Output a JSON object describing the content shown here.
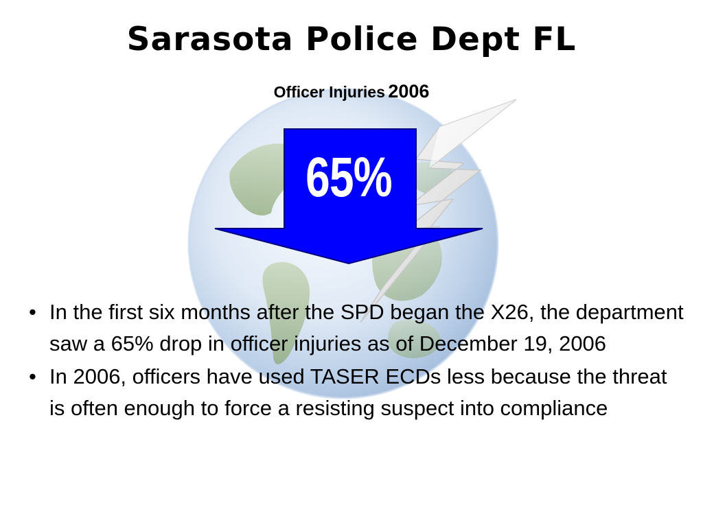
{
  "slide": {
    "title": "Sarasota Police Dept FL",
    "subtitle_label": "Officer Injuries",
    "subtitle_year": "2006",
    "arrow_value": "65%",
    "bullet_char": "•",
    "bullets": [
      {
        "text": "In the first six months after the SPD began the X26, the department saw a 65% drop in officer injuries as of December 19, 2006"
      },
      {
        "text": "In 2006, officers have used TASER ECDs less because the threat is often enough to force a resisting suspect into compliance"
      }
    ]
  },
  "colors": {
    "arrow_fill": "#0000ff",
    "arrow_stroke": "#000080",
    "text": "#000000",
    "arrow_text": "#ffffff",
    "globe_light": "#eef4fb",
    "globe_mid": "#b9cde6",
    "land": "#9bb489"
  },
  "icons": {
    "background": "globe-icon",
    "lightning": "lightning-bolt-icon",
    "arrow": "down-arrow-icon"
  }
}
